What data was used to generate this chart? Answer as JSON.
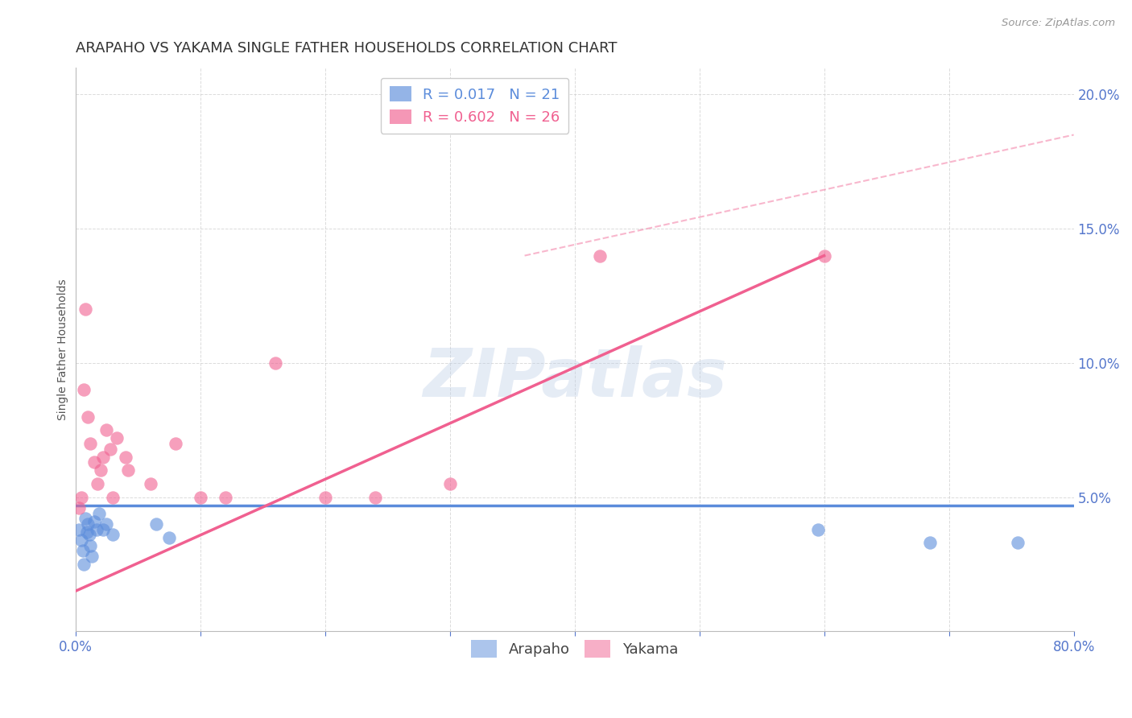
{
  "title": "ARAPAHO VS YAKAMA SINGLE FATHER HOUSEHOLDS CORRELATION CHART",
  "source": "Source: ZipAtlas.com",
  "ylabel": "Single Father Households",
  "xlim": [
    0.0,
    0.8
  ],
  "ylim": [
    0.0,
    0.21
  ],
  "arapaho_color": "#5b8cdb",
  "yakama_color": "#f06090",
  "arapaho_R": 0.017,
  "arapaho_N": 21,
  "yakama_R": 0.602,
  "yakama_N": 26,
  "arapaho_x": [
    0.003,
    0.005,
    0.006,
    0.007,
    0.008,
    0.009,
    0.01,
    0.011,
    0.012,
    0.013,
    0.015,
    0.017,
    0.019,
    0.022,
    0.025,
    0.03,
    0.065,
    0.075,
    0.595,
    0.685,
    0.755
  ],
  "arapaho_y": [
    0.038,
    0.034,
    0.03,
    0.025,
    0.042,
    0.037,
    0.04,
    0.036,
    0.032,
    0.028,
    0.041,
    0.038,
    0.044,
    0.038,
    0.04,
    0.036,
    0.04,
    0.035,
    0.038,
    0.033,
    0.033
  ],
  "yakama_x": [
    0.003,
    0.005,
    0.007,
    0.008,
    0.01,
    0.012,
    0.015,
    0.018,
    0.02,
    0.022,
    0.025,
    0.028,
    0.03,
    0.033,
    0.04,
    0.042,
    0.06,
    0.08,
    0.1,
    0.12,
    0.16,
    0.2,
    0.24,
    0.3,
    0.42,
    0.6
  ],
  "yakama_y": [
    0.046,
    0.05,
    0.09,
    0.12,
    0.08,
    0.07,
    0.063,
    0.055,
    0.06,
    0.065,
    0.075,
    0.068,
    0.05,
    0.072,
    0.065,
    0.06,
    0.055,
    0.07,
    0.05,
    0.05,
    0.1,
    0.05,
    0.05,
    0.055,
    0.14,
    0.14
  ],
  "arapaho_line_x": [
    0.0,
    0.8
  ],
  "arapaho_line_y": [
    0.047,
    0.047
  ],
  "yakama_line_x": [
    0.0,
    0.6
  ],
  "yakama_line_y": [
    0.015,
    0.14
  ],
  "dashed_line_x": [
    0.36,
    0.8
  ],
  "dashed_line_y": [
    0.14,
    0.185
  ],
  "yticks": [
    0.0,
    0.05,
    0.1,
    0.15,
    0.2
  ],
  "ytick_labels": [
    "",
    "5.0%",
    "10.0%",
    "15.0%",
    "20.0%"
  ],
  "xticks": [
    0.0,
    0.1,
    0.2,
    0.3,
    0.4,
    0.5,
    0.6,
    0.7,
    0.8
  ],
  "xtick_labels": [
    "0.0%",
    "",
    "",
    "",
    "",
    "",
    "",
    "",
    "80.0%"
  ],
  "grid_color": "#cccccc",
  "axis_label_color": "#5577cc",
  "title_color": "#333333",
  "watermark_text": "ZIPatlas",
  "watermark_color": "#c0d0e8",
  "watermark_alpha": 0.4,
  "source_color": "#999999",
  "ylabel_color": "#555555"
}
